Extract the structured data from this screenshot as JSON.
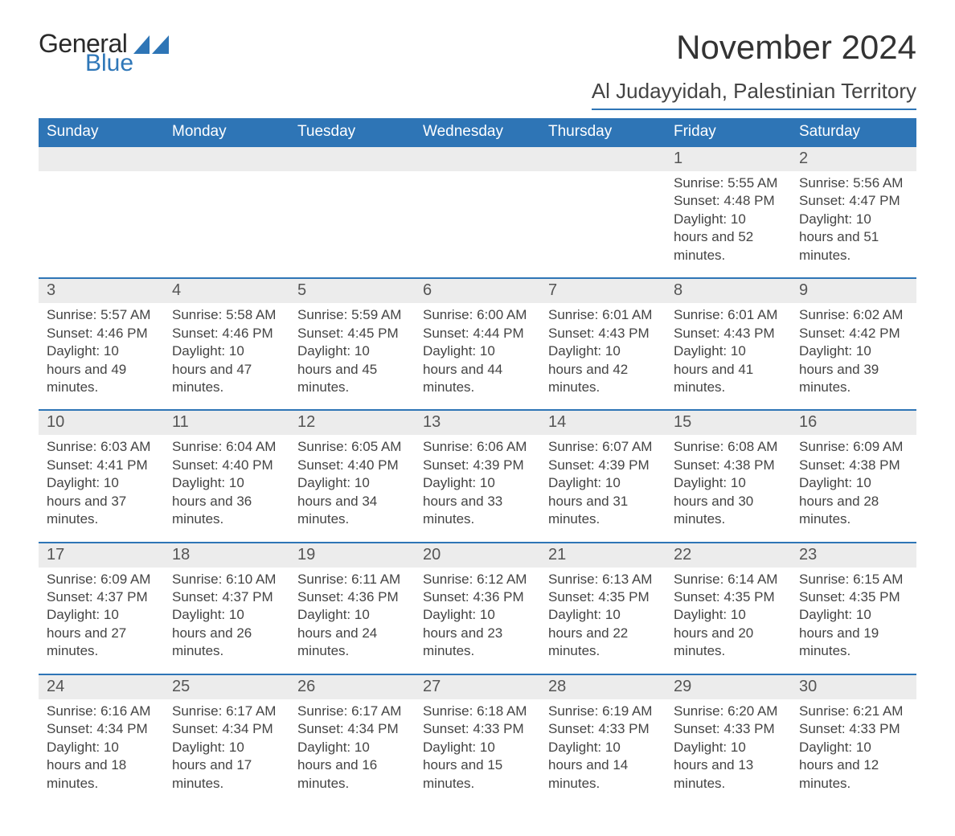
{
  "brand": {
    "general": "General",
    "blue": "Blue",
    "accent_color": "#2e75b6"
  },
  "title": "November 2024",
  "location": "Al Judayyidah, Palestinian Territory",
  "day_headers": [
    "Sunday",
    "Monday",
    "Tuesday",
    "Wednesday",
    "Thursday",
    "Friday",
    "Saturday"
  ],
  "labels": {
    "sunrise": "Sunrise",
    "sunset": "Sunset",
    "daylight_prefix": "Daylight"
  },
  "colors": {
    "header_bg": "#2e75b6",
    "header_text": "#ffffff",
    "band_bg": "#ececec",
    "rule": "#2e75b6",
    "text": "#444444",
    "daynum": "#555555",
    "background": "#ffffff"
  },
  "typography": {
    "title_fontsize": 42,
    "location_fontsize": 26,
    "header_fontsize": 19,
    "daynum_fontsize": 20,
    "body_fontsize": 17,
    "logo_fontsize": 32
  },
  "weeks": [
    [
      null,
      null,
      null,
      null,
      null,
      {
        "n": "1",
        "sunrise": "5:55 AM",
        "sunset": "4:48 PM",
        "daylight": "10 hours and 52 minutes."
      },
      {
        "n": "2",
        "sunrise": "5:56 AM",
        "sunset": "4:47 PM",
        "daylight": "10 hours and 51 minutes."
      }
    ],
    [
      {
        "n": "3",
        "sunrise": "5:57 AM",
        "sunset": "4:46 PM",
        "daylight": "10 hours and 49 minutes."
      },
      {
        "n": "4",
        "sunrise": "5:58 AM",
        "sunset": "4:46 PM",
        "daylight": "10 hours and 47 minutes."
      },
      {
        "n": "5",
        "sunrise": "5:59 AM",
        "sunset": "4:45 PM",
        "daylight": "10 hours and 45 minutes."
      },
      {
        "n": "6",
        "sunrise": "6:00 AM",
        "sunset": "4:44 PM",
        "daylight": "10 hours and 44 minutes."
      },
      {
        "n": "7",
        "sunrise": "6:01 AM",
        "sunset": "4:43 PM",
        "daylight": "10 hours and 42 minutes."
      },
      {
        "n": "8",
        "sunrise": "6:01 AM",
        "sunset": "4:43 PM",
        "daylight": "10 hours and 41 minutes."
      },
      {
        "n": "9",
        "sunrise": "6:02 AM",
        "sunset": "4:42 PM",
        "daylight": "10 hours and 39 minutes."
      }
    ],
    [
      {
        "n": "10",
        "sunrise": "6:03 AM",
        "sunset": "4:41 PM",
        "daylight": "10 hours and 37 minutes."
      },
      {
        "n": "11",
        "sunrise": "6:04 AM",
        "sunset": "4:40 PM",
        "daylight": "10 hours and 36 minutes."
      },
      {
        "n": "12",
        "sunrise": "6:05 AM",
        "sunset": "4:40 PM",
        "daylight": "10 hours and 34 minutes."
      },
      {
        "n": "13",
        "sunrise": "6:06 AM",
        "sunset": "4:39 PM",
        "daylight": "10 hours and 33 minutes."
      },
      {
        "n": "14",
        "sunrise": "6:07 AM",
        "sunset": "4:39 PM",
        "daylight": "10 hours and 31 minutes."
      },
      {
        "n": "15",
        "sunrise": "6:08 AM",
        "sunset": "4:38 PM",
        "daylight": "10 hours and 30 minutes."
      },
      {
        "n": "16",
        "sunrise": "6:09 AM",
        "sunset": "4:38 PM",
        "daylight": "10 hours and 28 minutes."
      }
    ],
    [
      {
        "n": "17",
        "sunrise": "6:09 AM",
        "sunset": "4:37 PM",
        "daylight": "10 hours and 27 minutes."
      },
      {
        "n": "18",
        "sunrise": "6:10 AM",
        "sunset": "4:37 PM",
        "daylight": "10 hours and 26 minutes."
      },
      {
        "n": "19",
        "sunrise": "6:11 AM",
        "sunset": "4:36 PM",
        "daylight": "10 hours and 24 minutes."
      },
      {
        "n": "20",
        "sunrise": "6:12 AM",
        "sunset": "4:36 PM",
        "daylight": "10 hours and 23 minutes."
      },
      {
        "n": "21",
        "sunrise": "6:13 AM",
        "sunset": "4:35 PM",
        "daylight": "10 hours and 22 minutes."
      },
      {
        "n": "22",
        "sunrise": "6:14 AM",
        "sunset": "4:35 PM",
        "daylight": "10 hours and 20 minutes."
      },
      {
        "n": "23",
        "sunrise": "6:15 AM",
        "sunset": "4:35 PM",
        "daylight": "10 hours and 19 minutes."
      }
    ],
    [
      {
        "n": "24",
        "sunrise": "6:16 AM",
        "sunset": "4:34 PM",
        "daylight": "10 hours and 18 minutes."
      },
      {
        "n": "25",
        "sunrise": "6:17 AM",
        "sunset": "4:34 PM",
        "daylight": "10 hours and 17 minutes."
      },
      {
        "n": "26",
        "sunrise": "6:17 AM",
        "sunset": "4:34 PM",
        "daylight": "10 hours and 16 minutes."
      },
      {
        "n": "27",
        "sunrise": "6:18 AM",
        "sunset": "4:33 PM",
        "daylight": "10 hours and 15 minutes."
      },
      {
        "n": "28",
        "sunrise": "6:19 AM",
        "sunset": "4:33 PM",
        "daylight": "10 hours and 14 minutes."
      },
      {
        "n": "29",
        "sunrise": "6:20 AM",
        "sunset": "4:33 PM",
        "daylight": "10 hours and 13 minutes."
      },
      {
        "n": "30",
        "sunrise": "6:21 AM",
        "sunset": "4:33 PM",
        "daylight": "10 hours and 12 minutes."
      }
    ]
  ]
}
